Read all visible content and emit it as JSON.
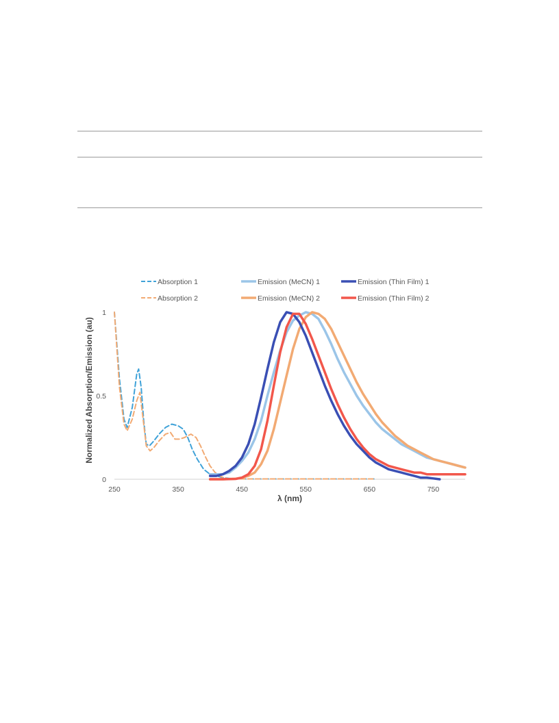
{
  "chart_data": {
    "type": "line",
    "xlabel": "λ (nm)",
    "ylabel": "Normalized Absorption/Emission (au)",
    "xlim": [
      250,
      800
    ],
    "ylim": [
      0,
      1.25
    ],
    "x_ticks": [
      "250",
      "350",
      "450",
      "550",
      "650",
      "750"
    ],
    "y_ticks": [
      "0",
      "0.5",
      "1"
    ],
    "grid": false,
    "legend_position": "top",
    "series": [
      {
        "name": "Absorption 1",
        "color": "#3fa2d8",
        "style": "dashed",
        "x": [
          250,
          258,
          265,
          270,
          278,
          285,
          288,
          292,
          296,
          300,
          305,
          312,
          320,
          330,
          340,
          350,
          358,
          365,
          372,
          380,
          390,
          400,
          410,
          420,
          430,
          440,
          450,
          500,
          550,
          600,
          650,
          658
        ],
        "y": [
          1.0,
          0.6,
          0.36,
          0.31,
          0.43,
          0.63,
          0.66,
          0.55,
          0.35,
          0.21,
          0.2,
          0.23,
          0.27,
          0.31,
          0.33,
          0.32,
          0.3,
          0.25,
          0.18,
          0.12,
          0.06,
          0.03,
          0.02,
          0.01,
          0.005,
          0.003,
          0.002,
          0.002,
          0.002,
          0.002,
          0.002,
          0.002
        ]
      },
      {
        "name": "Absorption 2",
        "color": "#f2aa73",
        "style": "dashed",
        "x": [
          250,
          258,
          265,
          270,
          278,
          285,
          290,
          295,
          300,
          306,
          312,
          320,
          330,
          338,
          345,
          352,
          360,
          370,
          378,
          385,
          392,
          400,
          408,
          415,
          422,
          430,
          440,
          450,
          500,
          550,
          600,
          650,
          658
        ],
        "y": [
          1.0,
          0.55,
          0.33,
          0.29,
          0.36,
          0.47,
          0.52,
          0.36,
          0.2,
          0.17,
          0.19,
          0.23,
          0.27,
          0.28,
          0.24,
          0.24,
          0.25,
          0.27,
          0.25,
          0.2,
          0.14,
          0.08,
          0.04,
          0.02,
          0.008,
          0.003,
          0.002,
          0.002,
          0.002,
          0.002,
          0.002,
          0.002,
          0.002
        ]
      },
      {
        "name": "Emission (MeCN) 1",
        "color": "#9bc5e8",
        "style": "solid",
        "x": [
          400,
          410,
          420,
          430,
          440,
          450,
          460,
          470,
          480,
          490,
          500,
          510,
          520,
          530,
          540,
          550,
          560,
          570,
          580,
          590,
          600,
          610,
          620,
          630,
          640,
          650,
          660,
          670,
          680,
          690,
          700,
          710,
          720,
          730,
          740,
          750,
          760,
          770,
          780,
          790,
          800
        ],
        "y": [
          0.03,
          0.03,
          0.03,
          0.04,
          0.07,
          0.11,
          0.16,
          0.24,
          0.35,
          0.5,
          0.64,
          0.77,
          0.88,
          0.95,
          0.98,
          1.0,
          0.99,
          0.96,
          0.89,
          0.81,
          0.72,
          0.64,
          0.57,
          0.5,
          0.44,
          0.39,
          0.34,
          0.3,
          0.27,
          0.24,
          0.21,
          0.19,
          0.17,
          0.15,
          0.13,
          0.12,
          0.11,
          0.1,
          0.09,
          0.08,
          0.07
        ]
      },
      {
        "name": "Emission (MeCN) 2",
        "color": "#f2aa73",
        "style": "solid",
        "x": [
          400,
          420,
          440,
          450,
          460,
          470,
          480,
          490,
          500,
          510,
          520,
          530,
          540,
          550,
          560,
          570,
          580,
          590,
          600,
          610,
          620,
          630,
          640,
          650,
          660,
          670,
          680,
          690,
          700,
          710,
          720,
          730,
          740,
          750,
          760,
          770,
          780,
          790,
          800
        ],
        "y": [
          0.0,
          0.0,
          0.003,
          0.01,
          0.02,
          0.04,
          0.09,
          0.17,
          0.3,
          0.46,
          0.62,
          0.78,
          0.9,
          0.97,
          1.0,
          0.99,
          0.96,
          0.9,
          0.82,
          0.74,
          0.66,
          0.58,
          0.51,
          0.45,
          0.39,
          0.34,
          0.3,
          0.26,
          0.23,
          0.2,
          0.18,
          0.16,
          0.14,
          0.12,
          0.11,
          0.1,
          0.09,
          0.08,
          0.07
        ]
      },
      {
        "name": "Emission (Thin Film) 1",
        "color": "#3a4fb4",
        "style": "solid",
        "x": [
          400,
          410,
          420,
          430,
          440,
          450,
          460,
          470,
          480,
          490,
          500,
          510,
          520,
          530,
          540,
          550,
          560,
          570,
          580,
          590,
          600,
          610,
          620,
          630,
          640,
          650,
          660,
          670,
          680,
          690,
          700,
          710,
          720,
          730,
          740,
          750,
          760
        ],
        "y": [
          0.02,
          0.02,
          0.03,
          0.05,
          0.08,
          0.13,
          0.21,
          0.33,
          0.49,
          0.66,
          0.82,
          0.94,
          1.0,
          0.99,
          0.94,
          0.86,
          0.76,
          0.66,
          0.56,
          0.47,
          0.39,
          0.32,
          0.26,
          0.21,
          0.17,
          0.13,
          0.1,
          0.08,
          0.06,
          0.05,
          0.04,
          0.03,
          0.02,
          0.01,
          0.01,
          0.005,
          0.0
        ]
      },
      {
        "name": "Emission (Thin Film) 2",
        "color": "#f2574b",
        "style": "solid",
        "x": [
          400,
          420,
          440,
          450,
          460,
          470,
          480,
          490,
          500,
          510,
          520,
          530,
          540,
          550,
          560,
          570,
          580,
          590,
          600,
          610,
          620,
          630,
          640,
          650,
          660,
          670,
          680,
          690,
          700,
          710,
          720,
          730,
          740,
          750,
          760,
          770,
          780,
          790,
          800
        ],
        "y": [
          0.0,
          0.0,
          0.002,
          0.01,
          0.03,
          0.08,
          0.18,
          0.35,
          0.56,
          0.76,
          0.91,
          0.99,
          0.99,
          0.93,
          0.84,
          0.74,
          0.64,
          0.54,
          0.45,
          0.37,
          0.3,
          0.24,
          0.19,
          0.15,
          0.12,
          0.1,
          0.08,
          0.07,
          0.06,
          0.05,
          0.04,
          0.04,
          0.03,
          0.03,
          0.03,
          0.03,
          0.03,
          0.03,
          0.03
        ]
      }
    ]
  }
}
